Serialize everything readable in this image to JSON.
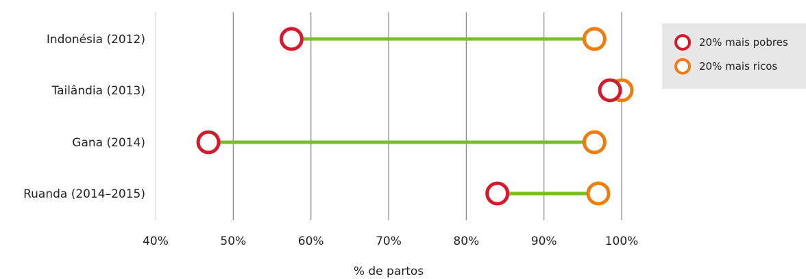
{
  "chart_data": {
    "type": "dumbbell",
    "xlabel": "% de partos",
    "xlim": [
      40,
      100
    ],
    "xticks": [
      40,
      50,
      60,
      70,
      80,
      90,
      100
    ],
    "tick_suffix": "%",
    "categories": [
      "Indonésia (2012)",
      "Tailândia (2013)",
      "Gana (2014)",
      "Ruanda (2014–2015)"
    ],
    "series": [
      {
        "name": "20% mais pobres",
        "color": "#d7192d",
        "values": [
          57.5,
          98.5,
          46.8,
          84.0
        ]
      },
      {
        "name": "20% mais ricos",
        "color": "#ee7d11",
        "values": [
          96.5,
          100.0,
          96.5,
          97.0
        ]
      }
    ],
    "connector_color": "#77bc2a",
    "grid": true,
    "legend_position": "top-right"
  }
}
